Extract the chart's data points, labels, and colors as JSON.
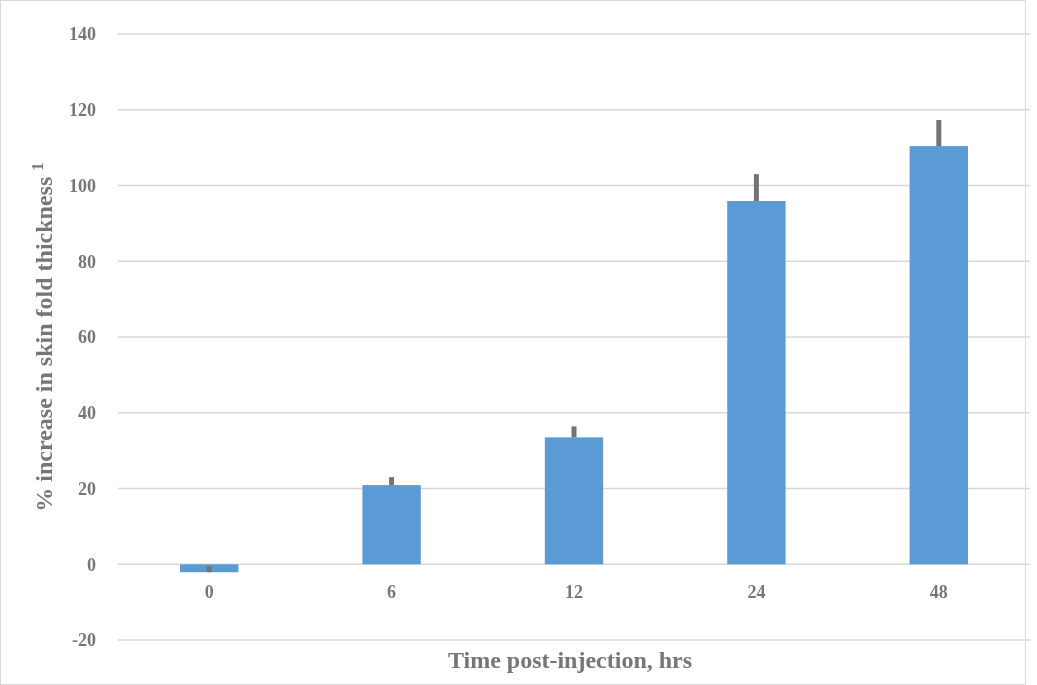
{
  "chart_data": {
    "type": "bar",
    "xlabel": "Time post-injection, hrs",
    "ylabel": "% increase in skin fold thickness $^{1}$",
    "categories": [
      "0",
      "6",
      "12",
      "24",
      "48"
    ],
    "values": [
      -2.1,
      20.9,
      33.5,
      95.9,
      110.4
    ],
    "errors": [
      [
        -2.1,
        -0.5
      ],
      [
        20.9,
        23.0
      ],
      [
        33.5,
        36.4
      ],
      [
        95.9,
        103.0
      ],
      [
        110.4,
        117.3
      ]
    ],
    "color": "#5b9bd5",
    "ylim": [
      -20,
      140
    ],
    "yticks": [
      -20,
      0,
      20,
      40,
      60,
      80,
      100,
      120,
      140
    ],
    "grid": "y"
  }
}
